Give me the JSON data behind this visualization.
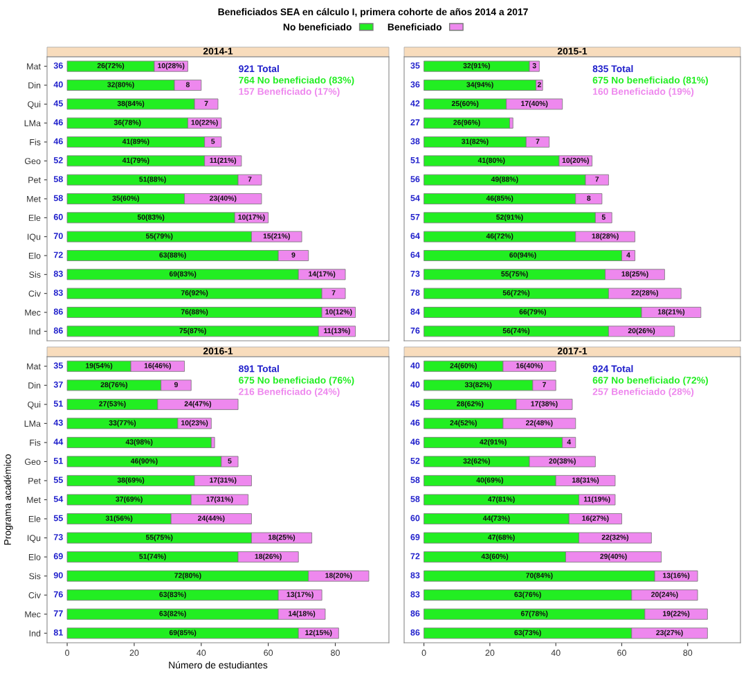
{
  "chart_data": [
    {
      "type": "bar",
      "orientation": "horizontal",
      "stacked": true,
      "title": "Beneficiados SEA en cálculo I, primera cohorte de años 2014 a 2017",
      "subtitle": "2014-1",
      "legend": "top",
      "tick_labels": "y",
      "xlim": [
        -6,
        96
      ],
      "xticks": [
        0,
        20,
        40,
        60,
        80
      ],
      "categories": [
        "Mat",
        "Din",
        "Qui",
        "LMa",
        "Fis",
        "Geo",
        "Pet",
        "Met",
        "Ele",
        "IQu",
        "Elo",
        "Sis",
        "Civ",
        "Mec",
        "Ind"
      ],
      "series": [
        {
          "name": "No beneficiado",
          "color": "#22ee22",
          "values": [
            26,
            32,
            38,
            36,
            41,
            41,
            51,
            35,
            50,
            55,
            63,
            69,
            76,
            76,
            75
          ],
          "value_labels": [
            "26(72%)",
            "32(80%)",
            "38(84%)",
            "36(78%)",
            "41(89%)",
            "41(79%)",
            "51(88%)",
            "35(60%)",
            "50(83%)",
            "55(79%)",
            "63(88%)",
            "69(83%)",
            "76(92%)",
            "76(88%)",
            "75(87%)"
          ]
        },
        {
          "name": "Beneficiado",
          "color": "#ee88ee",
          "values": [
            10,
            8,
            7,
            10,
            5,
            11,
            7,
            23,
            10,
            15,
            9,
            14,
            7,
            10,
            11
          ],
          "value_labels": [
            "10(28%)",
            "8",
            "7",
            "10(22%)",
            "5",
            "11(21%)",
            "7",
            "23(40%)",
            "10(17%)",
            "15(21%)",
            "9",
            "14(17%)",
            "7",
            "10(12%)",
            "11(13%)"
          ]
        }
      ],
      "totals": [
        "36",
        "40",
        "45",
        "46",
        "46",
        "52",
        "58",
        "58",
        "60",
        "70",
        "72",
        "83",
        "83",
        "86",
        "86"
      ],
      "annotations": [
        "921 Total",
        "764 No beneficiado (83%)",
        "157 Beneficiado (17%)"
      ]
    },
    {
      "type": "bar",
      "orientation": "horizontal",
      "stacked": true,
      "subtitle": "2015-1",
      "tick_labels": false,
      "xlim": [
        -6,
        96
      ],
      "xticks": [
        0,
        20,
        40,
        60,
        80
      ],
      "categories": [
        null,
        null,
        null,
        null,
        null,
        null,
        null,
        null,
        null,
        null,
        null,
        null,
        null,
        null,
        null
      ],
      "series": [
        {
          "color": "#22ee22",
          "values": [
            32,
            34,
            25,
            26,
            31,
            41,
            49,
            46,
            52,
            46,
            60,
            55,
            56,
            66,
            56
          ],
          "value_labels": [
            "32(91%)",
            "34(94%)",
            "25(60%)",
            "26(96%)",
            "31(82%)",
            "41(80%)",
            "49(88%)",
            "46(85%)",
            "52(91%)",
            "46(72%)",
            "60(94%)",
            "55(75%)",
            "56(72%)",
            "66(79%)",
            "56(74%)"
          ]
        },
        {
          "color": "#ee88ee",
          "values": [
            3,
            2,
            17,
            1,
            7,
            10,
            7,
            8,
            5,
            18,
            4,
            18,
            22,
            18,
            20
          ],
          "value_labels": [
            "3",
            "2",
            "17(40%)",
            null,
            "7",
            "10(20%)",
            "7",
            "8",
            "5",
            "18(28%)",
            "4",
            "18(25%)",
            "22(28%)",
            "18(21%)",
            "20(26%)"
          ]
        }
      ],
      "totals": [
        "35",
        "36",
        "42",
        "27",
        "38",
        "51",
        "56",
        "54",
        "57",
        "64",
        "64",
        "73",
        "78",
        "84",
        "76"
      ],
      "annotations": [
        "835 Total",
        "675 No beneficiado (81%)",
        "160 Beneficiado (19%)"
      ]
    },
    {
      "type": "bar",
      "orientation": "horizontal",
      "stacked": true,
      "subtitle": "2016-1",
      "xlabel": "Número de estudiantes",
      "ylabel": "Programa académico",
      "xlim": [
        -6,
        96
      ],
      "xticks": [
        0,
        20,
        40,
        60,
        80
      ],
      "categories": [
        "Mat",
        "Din",
        "Qui",
        "LMa",
        "Fis",
        "Geo",
        "Pet",
        "Met",
        "Ele",
        "IQu",
        "Elo",
        "Sis",
        "Civ",
        "Mec",
        "Ind"
      ],
      "series": [
        {
          "color": "#22ee22",
          "values": [
            19,
            28,
            27,
            33,
            43,
            46,
            38,
            37,
            31,
            55,
            51,
            72,
            63,
            63,
            69
          ],
          "value_labels": [
            "19(54%)",
            "28(76%)",
            "27(53%)",
            "33(77%)",
            "43(98%)",
            "46(90%)",
            "38(69%)",
            "37(69%)",
            "31(56%)",
            "55(75%)",
            "51(74%)",
            "72(80%)",
            "63(83%)",
            "63(82%)",
            "69(85%)"
          ]
        },
        {
          "color": "#ee88ee",
          "values": [
            16,
            9,
            24,
            10,
            1,
            5,
            17,
            17,
            24,
            18,
            18,
            18,
            13,
            14,
            12
          ],
          "value_labels": [
            "16(46%)",
            "9",
            "24(47%)",
            "10(23%)",
            null,
            "5",
            "17(31%)",
            "17(31%)",
            "24(44%)",
            "18(25%)",
            "18(26%)",
            "18(20%)",
            "13(17%)",
            "14(18%)",
            "12(15%)"
          ]
        }
      ],
      "totals": [
        "35",
        "37",
        "51",
        "43",
        "44",
        "51",
        "55",
        "54",
        "55",
        "73",
        "69",
        "90",
        "76",
        "77",
        "81"
      ],
      "annotations": [
        "891 Total",
        "675 No beneficiado (76%)",
        "216 Beneficiado (24%)"
      ]
    },
    {
      "type": "bar",
      "orientation": "horizontal",
      "stacked": true,
      "subtitle": "2017-1",
      "tick_labels": "x",
      "xlim": [
        -6,
        96
      ],
      "xticks": [
        0,
        20,
        40,
        60,
        80
      ],
      "categories": [
        null,
        null,
        null,
        null,
        null,
        null,
        null,
        null,
        null,
        null,
        null,
        null,
        null,
        null,
        null
      ],
      "series": [
        {
          "color": "#22ee22",
          "values": [
            24,
            33,
            28,
            24,
            42,
            32,
            40,
            47,
            44,
            47,
            43,
            70,
            63,
            67,
            63
          ],
          "value_labels": [
            "24(60%)",
            "33(82%)",
            "28(62%)",
            "24(52%)",
            "42(91%)",
            "32(62%)",
            "40(69%)",
            "47(81%)",
            "44(73%)",
            "47(68%)",
            "43(60%)",
            "70(84%)",
            "63(76%)",
            "67(78%)",
            "63(73%)"
          ]
        },
        {
          "color": "#ee88ee",
          "values": [
            16,
            7,
            17,
            22,
            4,
            20,
            18,
            11,
            16,
            22,
            29,
            13,
            20,
            19,
            23
          ],
          "value_labels": [
            "16(40%)",
            "7",
            "17(38%)",
            "22(48%)",
            "4",
            "20(38%)",
            "18(31%)",
            "11(19%)",
            "16(27%)",
            "22(32%)",
            "29(40%)",
            "13(16%)",
            "20(24%)",
            "19(22%)",
            "23(27%)"
          ]
        }
      ],
      "totals": [
        "40",
        "40",
        "45",
        "46",
        "46",
        "52",
        "58",
        "58",
        "60",
        "69",
        "72",
        "83",
        "83",
        "86",
        "86"
      ],
      "annotations": [
        "924 Total",
        "667 No beneficiado (72%)",
        "257 Beneficiado (28%)"
      ]
    }
  ]
}
